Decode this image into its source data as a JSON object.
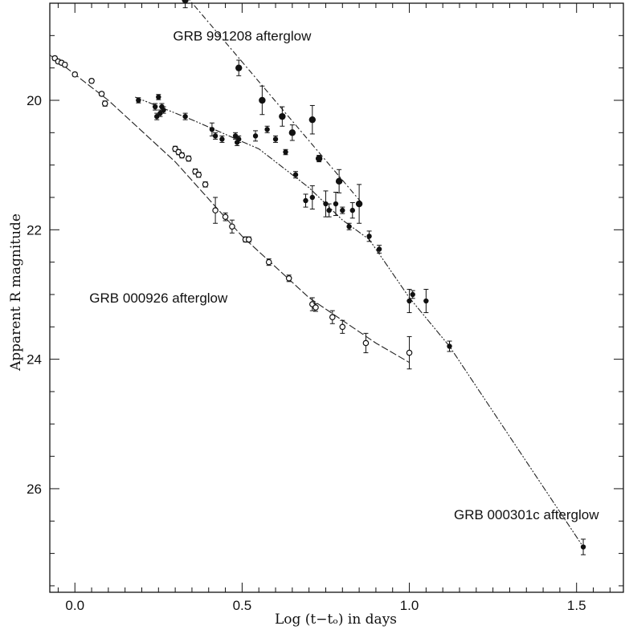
{
  "chart_data": {
    "type": "scatter",
    "title": "",
    "xlabel": "Log (t−tₒ) in days",
    "ylabel": "Apparent R magnitude",
    "xlim": [
      -0.075,
      1.64
    ],
    "ylim": [
      27.6,
      18.5
    ],
    "y_inverted": true,
    "grid": false,
    "x_ticks": [
      0.0,
      0.5,
      1.0,
      1.5
    ],
    "x_tick_labels": [
      "0.0",
      "0.5",
      "1.0",
      "1.5"
    ],
    "y_ticks": [
      20,
      22,
      24,
      26
    ],
    "y_tick_labels": [
      "20",
      "22",
      "24",
      "26"
    ],
    "series": [
      {
        "name": "GRB 991208 afterglow",
        "marker": "filled-circle",
        "color": "#111111",
        "label_text": "GRB 991208 afterglow",
        "label_at": {
          "x": 0.5,
          "y": 19.0
        },
        "fit_line": [
          [
            0.31,
            18.25
          ],
          [
            0.86,
            21.6
          ]
        ],
        "points": [
          {
            "x": 0.33,
            "y": 18.45,
            "err": 0.12
          },
          {
            "x": 0.49,
            "y": 19.5,
            "err": 0.12
          },
          {
            "x": 0.56,
            "y": 20.0,
            "err": 0.22
          },
          {
            "x": 0.62,
            "y": 20.25,
            "err": 0.15
          },
          {
            "x": 0.65,
            "y": 20.5,
            "err": 0.12
          },
          {
            "x": 0.71,
            "y": 20.3,
            "err": 0.22
          },
          {
            "x": 0.73,
            "y": 20.9,
            "err": 0.05
          },
          {
            "x": 0.79,
            "y": 21.25,
            "err": 0.18
          },
          {
            "x": 0.85,
            "y": 21.6,
            "err": 0.3
          }
        ]
      },
      {
        "name": "GRB 000301c afterglow",
        "marker": "filled-dot",
        "color": "#111111",
        "label_text": "GRB 000301c afterglow",
        "label_at": {
          "x": 1.35,
          "y": 26.4
        },
        "fit_line": [
          [
            0.18,
            19.95
          ],
          [
            0.35,
            20.3
          ],
          [
            0.55,
            20.75
          ],
          [
            0.7,
            21.35
          ],
          [
            0.8,
            21.85
          ],
          [
            0.88,
            22.15
          ],
          [
            1.0,
            23.05
          ],
          [
            1.12,
            23.8
          ],
          [
            1.52,
            26.9
          ]
        ],
        "points": [
          {
            "x": 0.19,
            "y": 20.0,
            "err": 0.04
          },
          {
            "x": 0.24,
            "y": 20.1,
            "err": 0.05
          },
          {
            "x": 0.245,
            "y": 20.25,
            "err": 0.05
          },
          {
            "x": 0.25,
            "y": 19.95,
            "err": 0.04
          },
          {
            "x": 0.255,
            "y": 20.2,
            "err": 0.05
          },
          {
            "x": 0.26,
            "y": 20.1,
            "err": 0.05
          },
          {
            "x": 0.265,
            "y": 20.15,
            "err": 0.05
          },
          {
            "x": 0.33,
            "y": 20.25,
            "err": 0.05
          },
          {
            "x": 0.41,
            "y": 20.45,
            "err": 0.1
          },
          {
            "x": 0.42,
            "y": 20.55,
            "err": 0.05
          },
          {
            "x": 0.44,
            "y": 20.6,
            "err": 0.05
          },
          {
            "x": 0.48,
            "y": 20.55,
            "err": 0.05
          },
          {
            "x": 0.485,
            "y": 20.65,
            "err": 0.05
          },
          {
            "x": 0.49,
            "y": 20.6,
            "err": 0.05
          },
          {
            "x": 0.54,
            "y": 20.55,
            "err": 0.08
          },
          {
            "x": 0.575,
            "y": 20.45,
            "err": 0.05
          },
          {
            "x": 0.6,
            "y": 20.6,
            "err": 0.05
          },
          {
            "x": 0.63,
            "y": 20.8,
            "err": 0.04
          },
          {
            "x": 0.66,
            "y": 21.15,
            "err": 0.05
          },
          {
            "x": 0.69,
            "y": 21.55,
            "err": 0.1
          },
          {
            "x": 0.71,
            "y": 21.5,
            "err": 0.18
          },
          {
            "x": 0.75,
            "y": 21.6,
            "err": 0.2
          },
          {
            "x": 0.76,
            "y": 21.7,
            "err": 0.1
          },
          {
            "x": 0.78,
            "y": 21.6,
            "err": 0.18
          },
          {
            "x": 0.8,
            "y": 21.7,
            "err": 0.05
          },
          {
            "x": 0.82,
            "y": 21.95,
            "err": 0.05
          },
          {
            "x": 0.83,
            "y": 21.7,
            "err": 0.12
          },
          {
            "x": 0.88,
            "y": 22.1,
            "err": 0.08
          },
          {
            "x": 0.91,
            "y": 22.3,
            "err": 0.06
          },
          {
            "x": 1.0,
            "y": 23.1,
            "err": 0.18
          },
          {
            "x": 1.01,
            "y": 23.0,
            "err": 0.06
          },
          {
            "x": 1.05,
            "y": 23.1,
            "err": 0.18
          },
          {
            "x": 1.12,
            "y": 23.8,
            "err": 0.08
          },
          {
            "x": 1.52,
            "y": 26.9,
            "err": 0.12
          }
        ]
      },
      {
        "name": "GRB 000926 afterglow",
        "marker": "open-circle",
        "color": "#111111",
        "label_text": "GRB 000926 afterglow",
        "label_at": {
          "x": 0.25,
          "y": 23.05
        },
        "fit_line": [
          [
            -0.075,
            19.3
          ],
          [
            0.0,
            19.6
          ],
          [
            0.1,
            20.0
          ],
          [
            0.3,
            20.95
          ],
          [
            0.5,
            22.1
          ],
          [
            0.7,
            23.05
          ],
          [
            0.9,
            23.75
          ],
          [
            1.0,
            24.05
          ]
        ],
        "points": [
          {
            "x": -0.06,
            "y": 19.35,
            "err": 0.03
          },
          {
            "x": -0.05,
            "y": 19.4,
            "err": 0.03
          },
          {
            "x": -0.04,
            "y": 19.42,
            "err": 0.03
          },
          {
            "x": -0.03,
            "y": 19.45,
            "err": 0.03
          },
          {
            "x": 0.0,
            "y": 19.6,
            "err": 0.03
          },
          {
            "x": 0.05,
            "y": 19.7,
            "err": 0.03
          },
          {
            "x": 0.08,
            "y": 19.9,
            "err": 0.03
          },
          {
            "x": 0.09,
            "y": 20.05,
            "err": 0.04
          },
          {
            "x": 0.3,
            "y": 20.75,
            "err": 0.04
          },
          {
            "x": 0.31,
            "y": 20.8,
            "err": 0.04
          },
          {
            "x": 0.32,
            "y": 20.85,
            "err": 0.04
          },
          {
            "x": 0.34,
            "y": 20.9,
            "err": 0.04
          },
          {
            "x": 0.36,
            "y": 21.1,
            "err": 0.04
          },
          {
            "x": 0.37,
            "y": 21.15,
            "err": 0.04
          },
          {
            "x": 0.39,
            "y": 21.3,
            "err": 0.04
          },
          {
            "x": 0.42,
            "y": 21.7,
            "err": 0.2
          },
          {
            "x": 0.45,
            "y": 21.8,
            "err": 0.06
          },
          {
            "x": 0.47,
            "y": 21.95,
            "err": 0.1
          },
          {
            "x": 0.51,
            "y": 22.15,
            "err": 0.04
          },
          {
            "x": 0.52,
            "y": 22.15,
            "err": 0.04
          },
          {
            "x": 0.58,
            "y": 22.5,
            "err": 0.05
          },
          {
            "x": 0.64,
            "y": 22.75,
            "err": 0.05
          },
          {
            "x": 0.71,
            "y": 23.15,
            "err": 0.1
          },
          {
            "x": 0.72,
            "y": 23.2,
            "err": 0.06
          },
          {
            "x": 0.77,
            "y": 23.35,
            "err": 0.1
          },
          {
            "x": 0.8,
            "y": 23.5,
            "err": 0.1
          },
          {
            "x": 0.87,
            "y": 23.75,
            "err": 0.15
          },
          {
            "x": 1.0,
            "y": 23.9,
            "err": 0.25
          }
        ]
      }
    ]
  }
}
